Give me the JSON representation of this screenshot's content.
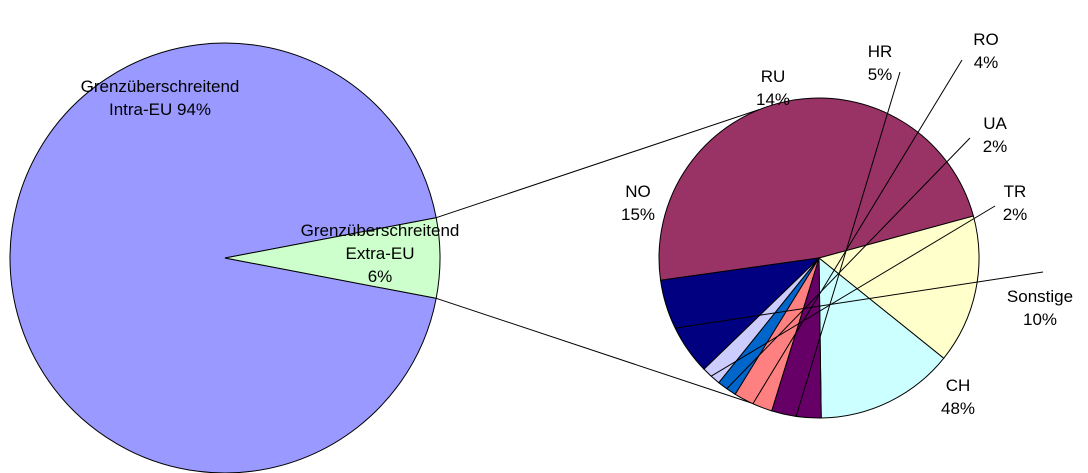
{
  "chart_data": [
    {
      "type": "pie",
      "slices": [
        {
          "name": "Grenzüberschreitend Intra-EU",
          "lines": [
            "Grenzüberschreitend",
            "Intra-EU 94%"
          ],
          "value": 94,
          "color": "#9999ff"
        },
        {
          "name": "Grenzüberschreitend Extra-EU",
          "lines": [
            "Grenzüberschreitend",
            "Extra-EU",
            "6%"
          ],
          "value": 6,
          "color": "#ccffcc"
        }
      ]
    },
    {
      "type": "pie",
      "slices": [
        {
          "name": "CH",
          "lines": [
            "CH",
            "48%"
          ],
          "value": 48,
          "color": "#993366"
        },
        {
          "name": "NO",
          "lines": [
            "NO",
            "15%"
          ],
          "value": 15,
          "color": "#ffffcc"
        },
        {
          "name": "RU",
          "lines": [
            "RU",
            "14%"
          ],
          "value": 14,
          "color": "#ccffff"
        },
        {
          "name": "HR",
          "lines": [
            "HR",
            "5%"
          ],
          "value": 5,
          "color": "#660066"
        },
        {
          "name": "RO",
          "lines": [
            "RO",
            "4%"
          ],
          "value": 4,
          "color": "#ff8080"
        },
        {
          "name": "UA",
          "lines": [
            "UA",
            "2%"
          ],
          "value": 2,
          "color": "#0066cc"
        },
        {
          "name": "TR",
          "lines": [
            "TR",
            "2%"
          ],
          "value": 2,
          "color": "#ccccff"
        },
        {
          "name": "Sonstige",
          "lines": [
            "Sonstige",
            "10%"
          ],
          "value": 10,
          "color": "#000080"
        }
      ]
    }
  ]
}
